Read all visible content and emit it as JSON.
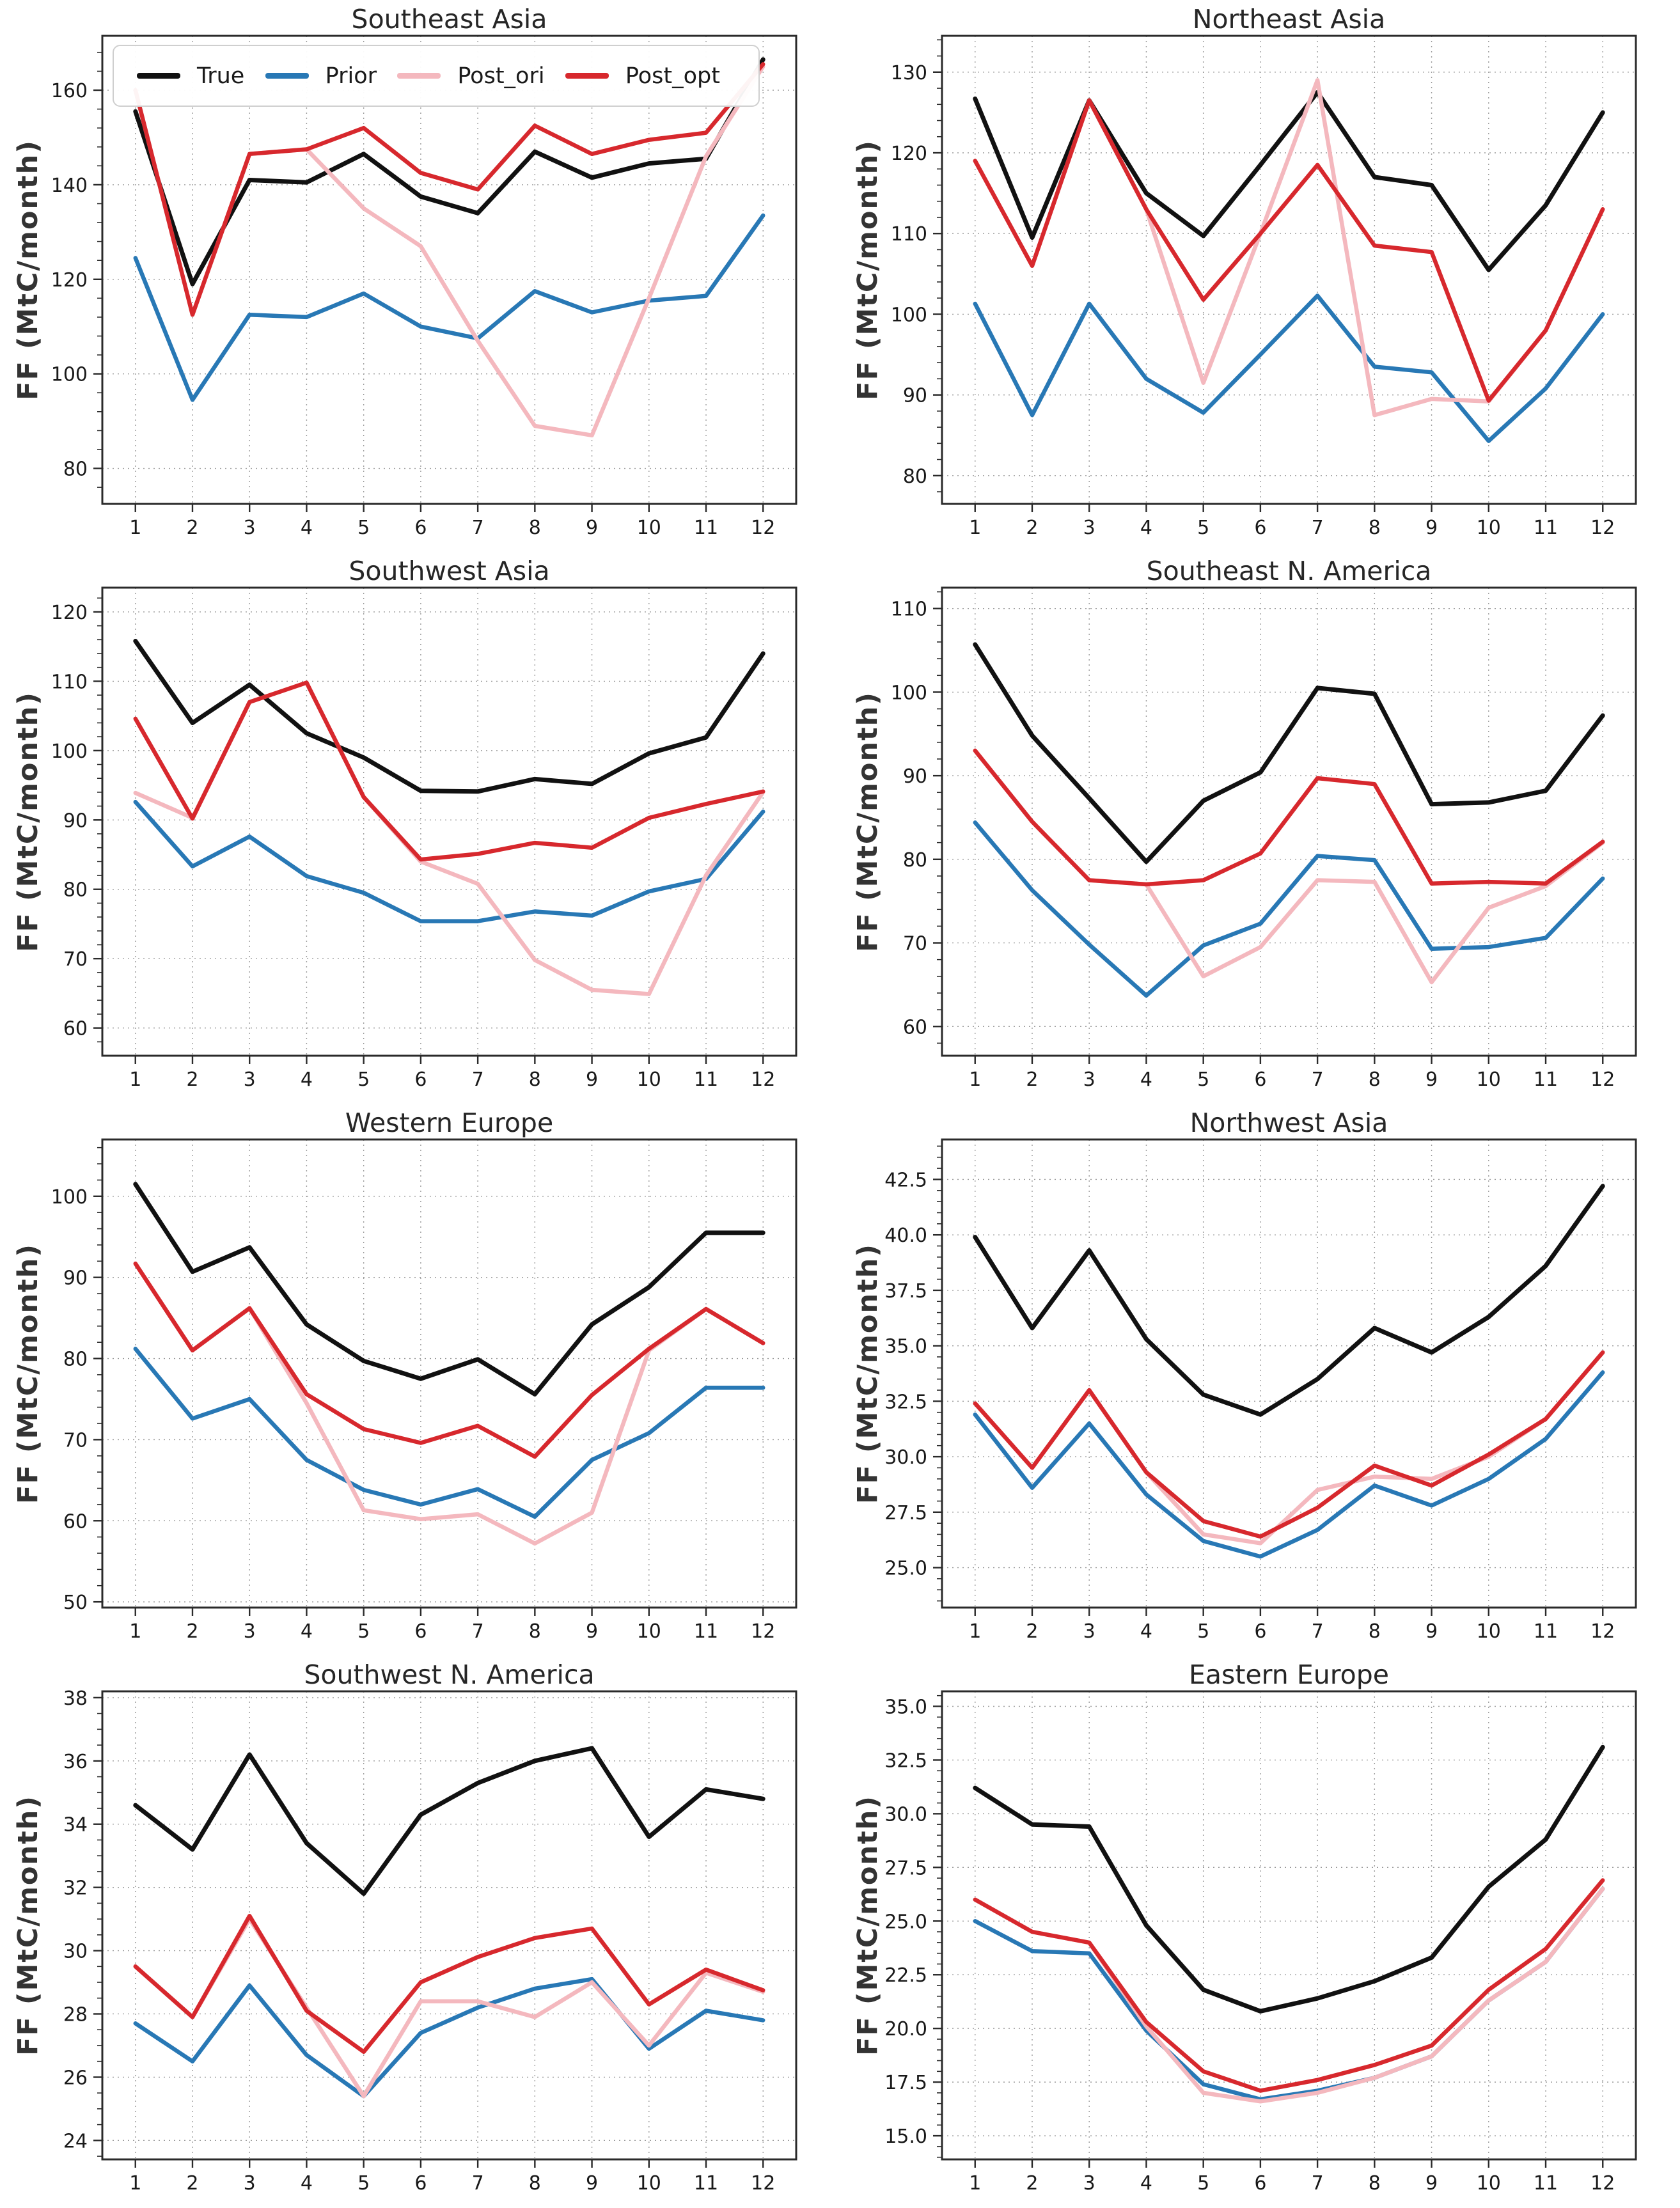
{
  "figure": {
    "columns": 2,
    "rows": 4,
    "background": "#ffffff"
  },
  "legend": {
    "position": "top-left-of-first-chart"
  },
  "chart_data": [
    {
      "type": "line",
      "title": "Southeast Asia",
      "ylabel": "FF (MtC/month)",
      "x": [
        1,
        2,
        3,
        4,
        5,
        6,
        7,
        8,
        9,
        10,
        11,
        12
      ],
      "xticks": [
        1,
        2,
        3,
        4,
        5,
        6,
        7,
        8,
        9,
        10,
        11,
        12
      ],
      "xlim": [
        0.42,
        12.58
      ],
      "ylim": [
        72.5,
        171.5
      ],
      "yticks": [
        80,
        100,
        120,
        140,
        160
      ],
      "ytick_decimals": 0,
      "yminor_div": 5,
      "grid": true,
      "legend": true,
      "series": [
        {
          "name": "True",
          "color": "#111111",
          "width": 7,
          "values": [
            155.5,
            119,
            141,
            140.5,
            146.5,
            137.5,
            134,
            147,
            141.5,
            144.5,
            145.5,
            166.5
          ]
        },
        {
          "name": "Prior",
          "color": "#2878b5",
          "width": 6.5,
          "values": [
            124.5,
            94.5,
            112.5,
            112,
            117,
            110,
            107.5,
            117.5,
            113,
            115.5,
            116.5,
            133.5
          ]
        },
        {
          "name": "Post_ori",
          "color": "#f4b8be",
          "width": 6.5,
          "values": [
            160,
            112.5,
            146.5,
            147.5,
            135,
            127,
            107,
            89,
            87,
            116,
            146,
            165
          ]
        },
        {
          "name": "Post_opt",
          "color": "#d7282d",
          "width": 6.5,
          "values": [
            160,
            112.5,
            146.5,
            147.5,
            152,
            142.5,
            139,
            152.5,
            146.5,
            149.5,
            151,
            165.5
          ]
        }
      ]
    },
    {
      "type": "line",
      "title": "Northeast Asia",
      "ylabel": "FF (MtC/month)",
      "x": [
        1,
        2,
        3,
        4,
        5,
        6,
        7,
        8,
        9,
        10,
        11,
        12
      ],
      "xticks": [
        1,
        2,
        3,
        4,
        5,
        6,
        7,
        8,
        9,
        10,
        11,
        12
      ],
      "xlim": [
        0.42,
        12.58
      ],
      "ylim": [
        76.5,
        134.5
      ],
      "yticks": [
        80,
        90,
        100,
        110,
        120,
        130
      ],
      "ytick_decimals": 0,
      "yminor_div": 5,
      "grid": true,
      "legend": false,
      "series": [
        {
          "name": "True",
          "color": "#111111",
          "width": 7,
          "values": [
            126.7,
            109.5,
            126.5,
            115,
            109.7,
            118.5,
            127.5,
            117,
            116,
            105.5,
            113.5,
            125
          ]
        },
        {
          "name": "Prior",
          "color": "#2878b5",
          "width": 6.5,
          "values": [
            101.3,
            87.5,
            101.3,
            92,
            87.8,
            95,
            102.3,
            93.5,
            92.8,
            84.3,
            90.8,
            100
          ]
        },
        {
          "name": "Post_ori",
          "color": "#f4b8be",
          "width": 6.5,
          "values": [
            119,
            106,
            126.5,
            113,
            91.5,
            110,
            129,
            87.5,
            89.5,
            89.2,
            98,
            113
          ]
        },
        {
          "name": "Post_opt",
          "color": "#d7282d",
          "width": 6.5,
          "values": [
            119,
            106,
            126.5,
            113,
            101.8,
            110,
            118.5,
            108.5,
            107.7,
            89.3,
            98,
            113
          ]
        }
      ]
    },
    {
      "type": "line",
      "title": "Southwest Asia",
      "ylabel": "FF (MtC/month)",
      "x": [
        1,
        2,
        3,
        4,
        5,
        6,
        7,
        8,
        9,
        10,
        11,
        12
      ],
      "xticks": [
        1,
        2,
        3,
        4,
        5,
        6,
        7,
        8,
        9,
        10,
        11,
        12
      ],
      "xlim": [
        0.42,
        12.58
      ],
      "ylim": [
        56,
        123.5
      ],
      "yticks": [
        60,
        70,
        80,
        90,
        100,
        110,
        120
      ],
      "ytick_decimals": 0,
      "yminor_div": 5,
      "grid": true,
      "legend": false,
      "series": [
        {
          "name": "True",
          "color": "#111111",
          "width": 7,
          "values": [
            115.8,
            104,
            109.5,
            102.5,
            99,
            94.2,
            94.1,
            95.9,
            95.2,
            99.6,
            101.9,
            114
          ]
        },
        {
          "name": "Prior",
          "color": "#2878b5",
          "width": 6.5,
          "values": [
            92.6,
            83.3,
            87.6,
            81.9,
            79.5,
            75.4,
            75.4,
            76.8,
            76.2,
            79.7,
            81.5,
            91.2
          ]
        },
        {
          "name": "Post_ori",
          "color": "#f4b8be",
          "width": 6.5,
          "values": [
            93.9,
            90.3,
            107,
            109.8,
            93.3,
            84,
            80.8,
            69.8,
            65.5,
            64.9,
            82,
            94
          ]
        },
        {
          "name": "Post_opt",
          "color": "#d7282d",
          "width": 6.5,
          "values": [
            104.6,
            90.2,
            107,
            109.8,
            93.3,
            84.3,
            85.1,
            86.7,
            86,
            90.3,
            92.3,
            94.1
          ]
        }
      ]
    },
    {
      "type": "line",
      "title": "Southeast N. America",
      "ylabel": "FF (MtC/month)",
      "x": [
        1,
        2,
        3,
        4,
        5,
        6,
        7,
        8,
        9,
        10,
        11,
        12
      ],
      "xticks": [
        1,
        2,
        3,
        4,
        5,
        6,
        7,
        8,
        9,
        10,
        11,
        12
      ],
      "xlim": [
        0.42,
        12.58
      ],
      "ylim": [
        56.5,
        112.5
      ],
      "yticks": [
        60,
        70,
        80,
        90,
        100,
        110
      ],
      "ytick_decimals": 0,
      "yminor_div": 5,
      "grid": true,
      "legend": false,
      "series": [
        {
          "name": "True",
          "color": "#111111",
          "width": 7,
          "values": [
            105.7,
            94.8,
            87.3,
            79.7,
            87,
            90.4,
            100.5,
            99.8,
            86.6,
            86.8,
            88.2,
            97.2
          ]
        },
        {
          "name": "Prior",
          "color": "#2878b5",
          "width": 6.5,
          "values": [
            84.4,
            76.3,
            69.8,
            63.7,
            69.7,
            72.3,
            80.4,
            79.9,
            69.3,
            69.5,
            70.6,
            77.7
          ]
        },
        {
          "name": "Post_ori",
          "color": "#f4b8be",
          "width": 6.5,
          "values": [
            93,
            84.5,
            77.5,
            77,
            66,
            69.5,
            77.5,
            77.3,
            65.3,
            74.2,
            76.8,
            82
          ]
        },
        {
          "name": "Post_opt",
          "color": "#d7282d",
          "width": 6.5,
          "values": [
            93,
            84.5,
            77.5,
            77,
            77.5,
            80.7,
            89.7,
            89,
            77.1,
            77.3,
            77.1,
            82.1
          ]
        }
      ]
    },
    {
      "type": "line",
      "title": "Western Europe",
      "ylabel": "FF (MtC/month)",
      "x": [
        1,
        2,
        3,
        4,
        5,
        6,
        7,
        8,
        9,
        10,
        11,
        12
      ],
      "xticks": [
        1,
        2,
        3,
        4,
        5,
        6,
        7,
        8,
        9,
        10,
        11,
        12
      ],
      "xlim": [
        0.42,
        12.58
      ],
      "ylim": [
        49.3,
        107
      ],
      "yticks": [
        50,
        60,
        70,
        80,
        90,
        100
      ],
      "ytick_decimals": 0,
      "yminor_div": 5,
      "grid": true,
      "legend": false,
      "series": [
        {
          "name": "True",
          "color": "#111111",
          "width": 7,
          "values": [
            101.5,
            90.7,
            93.7,
            84.2,
            79.7,
            77.5,
            79.9,
            75.6,
            84.2,
            88.8,
            95.5,
            95.5
          ]
        },
        {
          "name": "Prior",
          "color": "#2878b5",
          "width": 6.5,
          "values": [
            81.2,
            72.6,
            75,
            67.5,
            63.8,
            62,
            63.9,
            60.5,
            67.5,
            70.8,
            76.4,
            76.4
          ]
        },
        {
          "name": "Post_ori",
          "color": "#f4b8be",
          "width": 6.5,
          "values": [
            91.7,
            81,
            86.2,
            74.5,
            61.3,
            60.2,
            60.8,
            57.2,
            61,
            81,
            86.1,
            81.9
          ]
        },
        {
          "name": "Post_opt",
          "color": "#d7282d",
          "width": 6.5,
          "values": [
            91.7,
            81,
            86.2,
            75.6,
            71.3,
            69.6,
            71.7,
            67.9,
            75.5,
            81.2,
            86.1,
            81.9
          ]
        }
      ]
    },
    {
      "type": "line",
      "title": "Northwest Asia",
      "ylabel": "FF (MtC/month)",
      "x": [
        1,
        2,
        3,
        4,
        5,
        6,
        7,
        8,
        9,
        10,
        11,
        12
      ],
      "xticks": [
        1,
        2,
        3,
        4,
        5,
        6,
        7,
        8,
        9,
        10,
        11,
        12
      ],
      "xlim": [
        0.42,
        12.58
      ],
      "ylim": [
        23.2,
        44.3
      ],
      "yticks": [
        25,
        27.5,
        30,
        32.5,
        35,
        37.5,
        40,
        42.5
      ],
      "ytick_decimals": 1,
      "yminor_div": 5,
      "grid": true,
      "legend": false,
      "series": [
        {
          "name": "True",
          "color": "#111111",
          "width": 7,
          "values": [
            39.9,
            35.8,
            39.3,
            35.3,
            32.8,
            31.9,
            33.5,
            35.8,
            34.7,
            36.3,
            38.6,
            42.2
          ]
        },
        {
          "name": "Prior",
          "color": "#2878b5",
          "width": 6.5,
          "values": [
            31.9,
            28.6,
            31.5,
            28.3,
            26.2,
            25.5,
            26.7,
            28.7,
            27.8,
            29,
            30.8,
            33.8
          ]
        },
        {
          "name": "Post_ori",
          "color": "#f4b8be",
          "width": 6.5,
          "values": [
            32.4,
            29.5,
            33,
            29.3,
            26.5,
            26.1,
            28.5,
            29.1,
            29,
            30,
            31.7,
            34.7
          ]
        },
        {
          "name": "Post_opt",
          "color": "#d7282d",
          "width": 6.5,
          "values": [
            32.4,
            29.5,
            33,
            29.3,
            27.1,
            26.4,
            27.7,
            29.6,
            28.7,
            30.1,
            31.7,
            34.7
          ]
        }
      ]
    },
    {
      "type": "line",
      "title": "Southwest N. America",
      "ylabel": "FF (MtC/month)",
      "x": [
        1,
        2,
        3,
        4,
        5,
        6,
        7,
        8,
        9,
        10,
        11,
        12
      ],
      "xticks": [
        1,
        2,
        3,
        4,
        5,
        6,
        7,
        8,
        9,
        10,
        11,
        12
      ],
      "xlim": [
        0.42,
        12.58
      ],
      "ylim": [
        23.4,
        38.2
      ],
      "yticks": [
        24,
        26,
        28,
        30,
        32,
        34,
        36,
        38
      ],
      "ytick_decimals": 0,
      "yminor_div": 4,
      "grid": true,
      "legend": false,
      "series": [
        {
          "name": "True",
          "color": "#111111",
          "width": 7,
          "values": [
            34.6,
            33.2,
            36.2,
            33.4,
            31.8,
            34.3,
            35.3,
            36,
            36.4,
            33.6,
            35.1,
            34.8
          ]
        },
        {
          "name": "Prior",
          "color": "#2878b5",
          "width": 6.5,
          "values": [
            27.7,
            26.5,
            28.9,
            26.7,
            25.4,
            27.4,
            28.2,
            28.8,
            29.1,
            26.9,
            28.1,
            27.8
          ]
        },
        {
          "name": "Post_ori",
          "color": "#f4b8be",
          "width": 6.5,
          "values": [
            29.5,
            27.9,
            31,
            28.2,
            25.4,
            28.4,
            28.4,
            27.9,
            29,
            27,
            29.3,
            28.7
          ]
        },
        {
          "name": "Post_opt",
          "color": "#d7282d",
          "width": 6.5,
          "values": [
            29.5,
            27.9,
            31.1,
            28.1,
            26.8,
            29,
            29.8,
            30.4,
            30.7,
            28.3,
            29.4,
            28.75
          ]
        }
      ]
    },
    {
      "type": "line",
      "title": "Eastern Europe",
      "ylabel": "FF (MtC/month)",
      "x": [
        1,
        2,
        3,
        4,
        5,
        6,
        7,
        8,
        9,
        10,
        11,
        12
      ],
      "xticks": [
        1,
        2,
        3,
        4,
        5,
        6,
        7,
        8,
        9,
        10,
        11,
        12
      ],
      "xlim": [
        0.42,
        12.58
      ],
      "ylim": [
        13.9,
        35.7
      ],
      "yticks": [
        15,
        17.5,
        20,
        22.5,
        25,
        27.5,
        30,
        32.5,
        35
      ],
      "ytick_decimals": 1,
      "yminor_div": 5,
      "grid": true,
      "legend": false,
      "series": [
        {
          "name": "True",
          "color": "#111111",
          "width": 7,
          "values": [
            31.2,
            29.5,
            29.4,
            24.8,
            21.8,
            20.8,
            21.4,
            22.2,
            23.3,
            26.6,
            28.8,
            33.1
          ]
        },
        {
          "name": "Prior",
          "color": "#2878b5",
          "width": 6.5,
          "values": [
            25,
            23.6,
            23.5,
            19.9,
            17.4,
            16.7,
            17.1,
            17.7,
            18.7,
            21.3,
            23.1,
            26.5
          ]
        },
        {
          "name": "Post_ori",
          "color": "#f4b8be",
          "width": 6.5,
          "values": [
            26,
            24.5,
            24,
            20.1,
            17,
            16.6,
            17,
            17.7,
            18.7,
            21.3,
            23.1,
            26.5
          ]
        },
        {
          "name": "Post_opt",
          "color": "#d7282d",
          "width": 6.5,
          "values": [
            26,
            24.5,
            24,
            20.3,
            18,
            17.1,
            17.6,
            18.3,
            19.2,
            21.8,
            23.7,
            26.9
          ]
        }
      ]
    }
  ]
}
